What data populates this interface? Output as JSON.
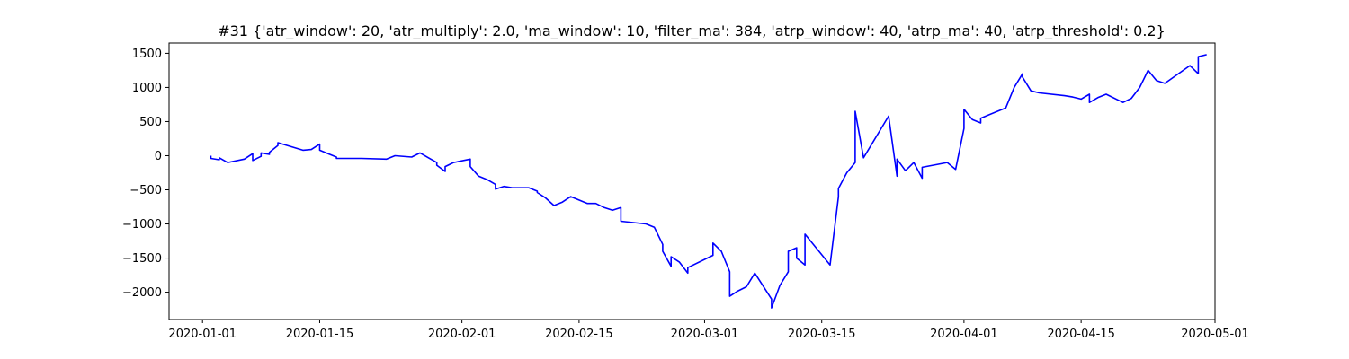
{
  "chart_data": {
    "type": "line",
    "title": "#31 {'atr_window': 20, 'atr_multiply': 2.0, 'ma_window': 10, 'filter_ma': 384, 'atrp_window': 40, 'atrp_ma': 40, 'atrp_threshold': 0.2}",
    "xlabel": "",
    "ylabel": "",
    "grid": false,
    "legend": "none",
    "xlim": [
      "2019-12-28",
      "2020-05-01"
    ],
    "ylim": [
      -2400,
      1650
    ],
    "x_ticks": [
      "2020-01-01",
      "2020-01-15",
      "2020-02-01",
      "2020-02-15",
      "2020-03-01",
      "2020-03-15",
      "2020-04-01",
      "2020-04-15",
      "2020-05-01"
    ],
    "y_ticks": [
      -2000,
      -1500,
      -1000,
      -500,
      0,
      500,
      1000,
      1500
    ],
    "series": [
      {
        "color": "#0000ff",
        "x": [
          "2020-01-02",
          "2020-01-02",
          "2020-01-03",
          "2020-01-03",
          "2020-01-04",
          "2020-01-06",
          "2020-01-07",
          "2020-01-07",
          "2020-01-08",
          "2020-01-08",
          "2020-01-09",
          "2020-01-09",
          "2020-01-10",
          "2020-01-10",
          "2020-01-13",
          "2020-01-14",
          "2020-01-15",
          "2020-01-15",
          "2020-01-16",
          "2020-01-17",
          "2020-01-17",
          "2020-01-20",
          "2020-01-23",
          "2020-01-24",
          "2020-01-26",
          "2020-01-27",
          "2020-01-28",
          "2020-01-29",
          "2020-01-29",
          "2020-01-30",
          "2020-01-30",
          "2020-01-31",
          "2020-02-02",
          "2020-02-02",
          "2020-02-03",
          "2020-02-04",
          "2020-02-05",
          "2020-02-05",
          "2020-02-06",
          "2020-02-07",
          "2020-02-09",
          "2020-02-10",
          "2020-02-10",
          "2020-02-11",
          "2020-02-12",
          "2020-02-13",
          "2020-02-14",
          "2020-02-16",
          "2020-02-17",
          "2020-02-18",
          "2020-02-19",
          "2020-02-20",
          "2020-02-20",
          "2020-02-23",
          "2020-02-24",
          "2020-02-25",
          "2020-02-25",
          "2020-02-26",
          "2020-02-26",
          "2020-02-27",
          "2020-02-28",
          "2020-02-28",
          "2020-03-02",
          "2020-03-02",
          "2020-03-03",
          "2020-03-04",
          "2020-03-04",
          "2020-03-05",
          "2020-03-06",
          "2020-03-07",
          "2020-03-09",
          "2020-03-09",
          "2020-03-10",
          "2020-03-11",
          "2020-03-11",
          "2020-03-12",
          "2020-03-12",
          "2020-03-13",
          "2020-03-13",
          "2020-03-16",
          "2020-03-17",
          "2020-03-17",
          "2020-03-18",
          "2020-03-19",
          "2020-03-19",
          "2020-03-20",
          "2020-03-23",
          "2020-03-24",
          "2020-03-24",
          "2020-03-25",
          "2020-03-26",
          "2020-03-27",
          "2020-03-27",
          "2020-03-30",
          "2020-03-31",
          "2020-04-01",
          "2020-04-01",
          "2020-04-02",
          "2020-04-03",
          "2020-04-03",
          "2020-04-06",
          "2020-04-07",
          "2020-04-08",
          "2020-04-08",
          "2020-04-09",
          "2020-04-10",
          "2020-04-13",
          "2020-04-14",
          "2020-04-15",
          "2020-04-16",
          "2020-04-16",
          "2020-04-17",
          "2020-04-18",
          "2020-04-20",
          "2020-04-21",
          "2020-04-22",
          "2020-04-23",
          "2020-04-24",
          "2020-04-25",
          "2020-04-28",
          "2020-04-29",
          "2020-04-29",
          "2020-04-30"
        ],
        "values": [
          0,
          -40,
          -60,
          -30,
          -100,
          -50,
          30,
          -70,
          -10,
          40,
          20,
          50,
          150,
          190,
          80,
          90,
          170,
          80,
          30,
          -20,
          -40,
          -40,
          -50,
          0,
          -20,
          40,
          -30,
          -100,
          -140,
          -230,
          -160,
          -100,
          -50,
          -160,
          -300,
          -350,
          -420,
          -490,
          -450,
          -470,
          -470,
          -520,
          -540,
          -620,
          -730,
          -680,
          -600,
          -700,
          -700,
          -760,
          -800,
          -760,
          -960,
          -1000,
          -1050,
          -1300,
          -1400,
          -1620,
          -1480,
          -1560,
          -1720,
          -1640,
          -1460,
          -1280,
          -1400,
          -1700,
          -2060,
          -1980,
          -1920,
          -1720,
          -2100,
          -2230,
          -1900,
          -1700,
          -1400,
          -1350,
          -1500,
          -1600,
          -1150,
          -1600,
          -600,
          -480,
          -250,
          -100,
          650,
          -30,
          580,
          -300,
          -50,
          -220,
          -100,
          -330,
          -170,
          -100,
          -200,
          400,
          680,
          530,
          480,
          550,
          700,
          1000,
          1200,
          1150,
          950,
          920,
          880,
          860,
          830,
          900,
          780,
          850,
          900,
          780,
          840,
          1000,
          1250,
          1100,
          1060,
          1320,
          1200,
          1450,
          1480
        ]
      }
    ]
  }
}
